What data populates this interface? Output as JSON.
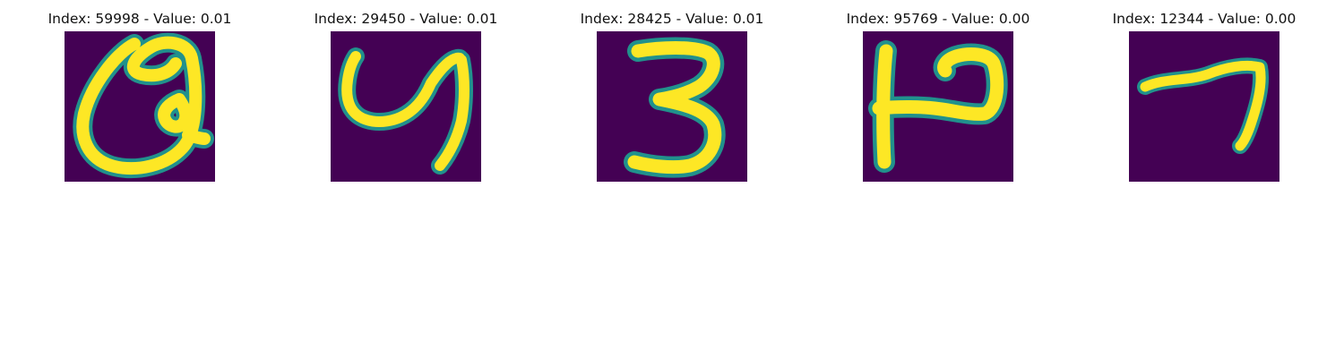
{
  "figure": {
    "background": "#ffffff",
    "colormap": {
      "low": "#440154",
      "mid": "#21918c",
      "high": "#fde725"
    }
  },
  "panels": [
    {
      "title": "Index: 59998 - Value: 0.01",
      "glyph": "9"
    },
    {
      "title": "Index: 29450 - Value: 0.01",
      "glyph": "4"
    },
    {
      "title": "Index: 28425 - Value: 0.01",
      "glyph": "3"
    },
    {
      "title": "Index: 95769 - Value: 0.00",
      "glyph": "P-shape"
    },
    {
      "title": "Index: 12344 - Value: 0.00",
      "glyph": "7"
    }
  ]
}
